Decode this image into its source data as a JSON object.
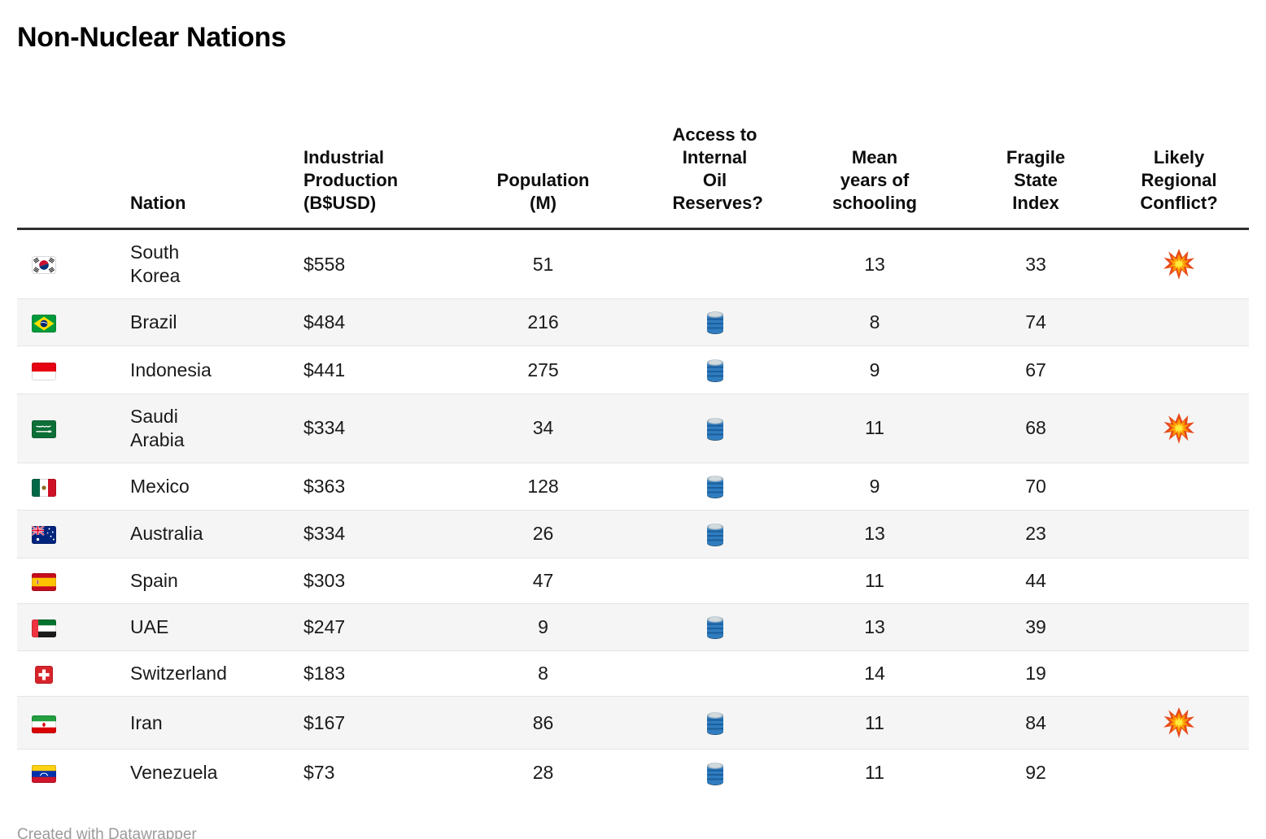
{
  "title": "Non-Nuclear Nations",
  "footer": "Created with Datawrapper",
  "chart_data": {
    "type": "table",
    "title": "Non-Nuclear Nations",
    "columns": [
      {
        "key": "flag",
        "label": "",
        "align": "left"
      },
      {
        "key": "nation",
        "label": "Nation",
        "align": "left"
      },
      {
        "key": "industrial_production",
        "label": "Industrial Production (B$USD)",
        "align": "left"
      },
      {
        "key": "population",
        "label": "Population (M)",
        "align": "center"
      },
      {
        "key": "oil",
        "label": "Access to Internal Oil Reserves?",
        "align": "center"
      },
      {
        "key": "schooling",
        "label": "Mean years of schooling",
        "align": "center"
      },
      {
        "key": "fragile",
        "label": "Fragile State Index",
        "align": "center"
      },
      {
        "key": "conflict",
        "label": "Likely Regional Conflict?",
        "align": "center"
      }
    ],
    "rows": [
      {
        "flag": "kr",
        "nation": "South Korea",
        "industrial_production": "$558",
        "population": "51",
        "oil": false,
        "schooling": "13",
        "fragile": "33",
        "conflict": true
      },
      {
        "flag": "br",
        "nation": "Brazil",
        "industrial_production": "$484",
        "population": "216",
        "oil": true,
        "schooling": "8",
        "fragile": "74",
        "conflict": false
      },
      {
        "flag": "id",
        "nation": "Indonesia",
        "industrial_production": "$441",
        "population": "275",
        "oil": true,
        "schooling": "9",
        "fragile": "67",
        "conflict": false
      },
      {
        "flag": "sa",
        "nation": "Saudi Arabia",
        "industrial_production": "$334",
        "population": "34",
        "oil": true,
        "schooling": "11",
        "fragile": "68",
        "conflict": true
      },
      {
        "flag": "mx",
        "nation": "Mexico",
        "industrial_production": "$363",
        "population": "128",
        "oil": true,
        "schooling": "9",
        "fragile": "70",
        "conflict": false
      },
      {
        "flag": "au",
        "nation": "Australia",
        "industrial_production": "$334",
        "population": "26",
        "oil": true,
        "schooling": "13",
        "fragile": "23",
        "conflict": false
      },
      {
        "flag": "es",
        "nation": "Spain",
        "industrial_production": "$303",
        "population": "47",
        "oil": false,
        "schooling": "11",
        "fragile": "44",
        "conflict": false
      },
      {
        "flag": "ae",
        "nation": "UAE",
        "industrial_production": "$247",
        "population": "9",
        "oil": true,
        "schooling": "13",
        "fragile": "39",
        "conflict": false
      },
      {
        "flag": "ch",
        "nation": "Switzerland",
        "industrial_production": "$183",
        "population": "8",
        "oil": false,
        "schooling": "14",
        "fragile": "19",
        "conflict": false
      },
      {
        "flag": "ir",
        "nation": "Iran",
        "industrial_production": "$167",
        "population": "86",
        "oil": true,
        "schooling": "11",
        "fragile": "84",
        "conflict": true
      },
      {
        "flag": "ve",
        "nation": "Venezuela",
        "industrial_production": "$73",
        "population": "28",
        "oil": true,
        "schooling": "11",
        "fragile": "92",
        "conflict": false
      }
    ]
  },
  "icons": {
    "oil": {
      "name": "oil-drum-icon",
      "glyph": "🛢️"
    },
    "conflict": {
      "name": "collision-icon",
      "glyph": "💥"
    },
    "flags": {
      "kr": "🇰🇷",
      "br": "🇧🇷",
      "id": "🇮🇩",
      "sa": "🇸🇦",
      "mx": "🇲🇽",
      "au": "🇦🇺",
      "es": "🇪🇸",
      "ae": "🇦🇪",
      "ch": "🇨🇭",
      "ir": "🇮🇷",
      "ve": "🇻🇪"
    }
  },
  "colors": {
    "background": "#ffffff",
    "text": "#1a1a1a",
    "header_rule": "#2e2e2e",
    "row_divider": "#e4e4e4",
    "row_alt_background": "#f5f5f5",
    "footer_text": "#9b9b9b",
    "oil_drum_blue": "#2f7dc0",
    "collision_orange": "#f57c00"
  }
}
